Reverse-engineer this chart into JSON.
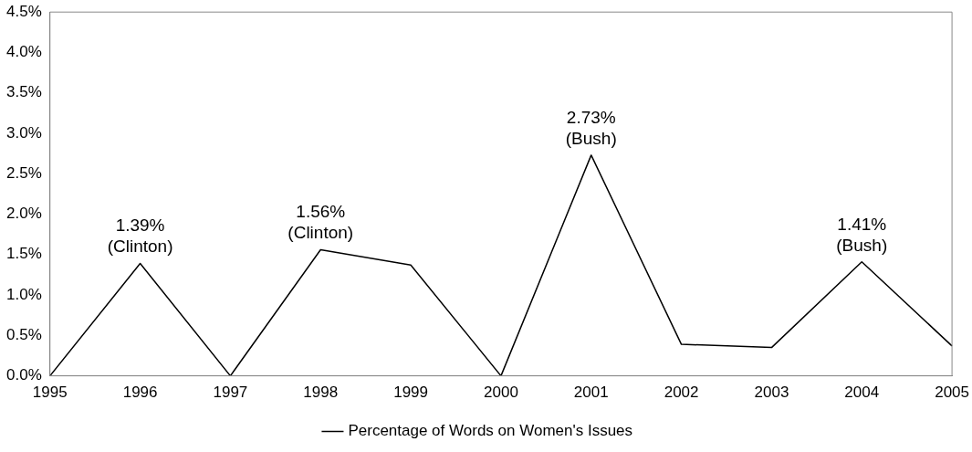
{
  "chart_data": {
    "type": "line",
    "categories": [
      "1995",
      "1996",
      "1997",
      "1998",
      "1999",
      "2000",
      "2001",
      "2002",
      "2003",
      "2004",
      "2005"
    ],
    "series": [
      {
        "name": "Percentage of Words on Women's Issues",
        "color": "#000000",
        "values": [
          0,
          1.39,
          0,
          1.56,
          1.37,
          0,
          2.73,
          0.39,
          0.35,
          1.41,
          0.37
        ]
      }
    ],
    "ylim": [
      0,
      4.5
    ],
    "yticks": [
      {
        "value": 0,
        "label": "0.0%"
      },
      {
        "value": 0.5,
        "label": "0.5%"
      },
      {
        "value": 1,
        "label": "1.0%"
      },
      {
        "value": 1.5,
        "label": "1.5%"
      },
      {
        "value": 2,
        "label": "2.0%"
      },
      {
        "value": 2.5,
        "label": "2.5%"
      },
      {
        "value": 3,
        "label": "3.0%"
      },
      {
        "value": 3.5,
        "label": "3.5%"
      },
      {
        "value": 4,
        "label": "4.0%"
      },
      {
        "value": 4.5,
        "label": "4.5%"
      }
    ],
    "annotations": [
      {
        "text": "1.39%\n(Clinton)",
        "x": "1996",
        "y": 1.39
      },
      {
        "text": "1.56%\n(Clinton)",
        "x": "1998",
        "y": 1.56
      },
      {
        "text": "2.73%\n(Bush)",
        "x": "2001",
        "y": 2.73
      },
      {
        "text": "1.41%\n(Bush)",
        "x": "2004",
        "y": 1.41
      }
    ],
    "grid": false,
    "legend": "bottom",
    "marker": "none",
    "line_style": "solid"
  }
}
